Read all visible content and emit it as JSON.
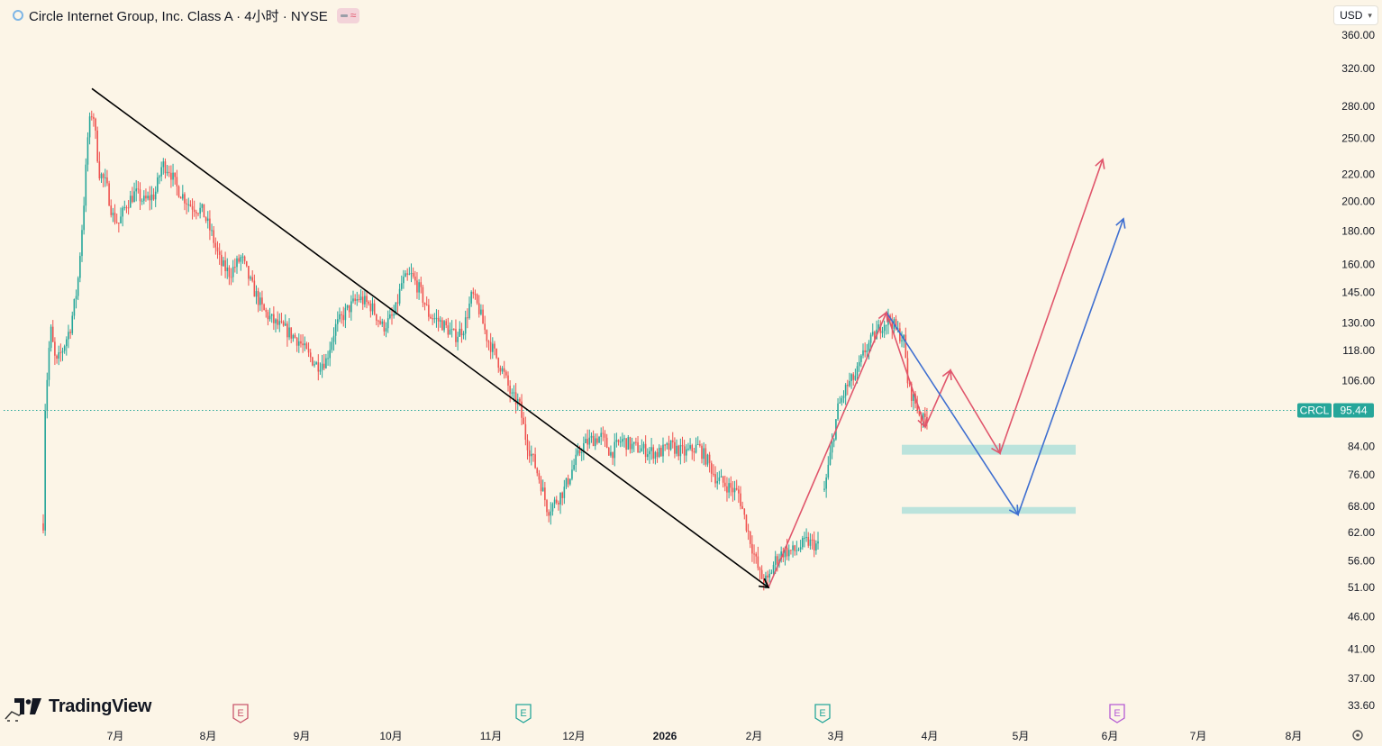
{
  "header": {
    "title": "Circle Internet Group, Inc. Class A · 4小时 · NYSE",
    "badge_icon": "wave-icon"
  },
  "currency": {
    "label": "USD"
  },
  "logo": {
    "text": "TradingView",
    "icon": "tradingview-logo-icon"
  },
  "colors": {
    "background": "#fcf5e7",
    "up": "#26a69a",
    "down": "#ef5350",
    "trendline": "#000000",
    "red_path": "#e0566c",
    "blue_path": "#3f6fd0",
    "zone": "#a6dcd8",
    "price_label": "#26a69a",
    "earnings": "#c9576c"
  },
  "chart_data": {
    "type": "candlestick",
    "symbol": "CRCL",
    "exchange": "NYSE",
    "interval": "4小时",
    "y_scale": "log",
    "ylim": [
      31,
      364
    ],
    "current_price": {
      "label": "CRCL",
      "value": 95.44
    },
    "y_ticks": [
      {
        "label": "360.00",
        "value": 360
      },
      {
        "label": "320.00",
        "value": 320
      },
      {
        "label": "280.00",
        "value": 280
      },
      {
        "label": "250.00",
        "value": 250
      },
      {
        "label": "220.00",
        "value": 220
      },
      {
        "label": "200.00",
        "value": 200
      },
      {
        "label": "180.00",
        "value": 180
      },
      {
        "label": "160.00",
        "value": 160
      },
      {
        "label": "145.00",
        "value": 145
      },
      {
        "label": "130.00",
        "value": 130
      },
      {
        "label": "118.00",
        "value": 118
      },
      {
        "label": "106.00",
        "value": 106
      },
      {
        "label": "84.00",
        "value": 84
      },
      {
        "label": "76.00",
        "value": 76
      },
      {
        "label": "68.00",
        "value": 68
      },
      {
        "label": "62.00",
        "value": 62
      },
      {
        "label": "56.00",
        "value": 56
      },
      {
        "label": "51.00",
        "value": 51
      },
      {
        "label": "46.00",
        "value": 46
      },
      {
        "label": "41.00",
        "value": 41
      },
      {
        "label": "37.00",
        "value": 37
      },
      {
        "label": "33.60",
        "value": 33.6
      }
    ],
    "x_ticks": [
      {
        "label": "7月",
        "x": 128
      },
      {
        "label": "8月",
        "x": 231
      },
      {
        "label": "9月",
        "x": 335
      },
      {
        "label": "10月",
        "x": 434
      },
      {
        "label": "11月",
        "x": 545
      },
      {
        "label": "12月",
        "x": 637
      },
      {
        "label": "2026",
        "x": 738,
        "bold": true
      },
      {
        "label": "2月",
        "x": 837
      },
      {
        "label": "3月",
        "x": 928
      },
      {
        "label": "4月",
        "x": 1032
      },
      {
        "label": "5月",
        "x": 1133
      },
      {
        "label": "6月",
        "x": 1232
      },
      {
        "label": "7月",
        "x": 1330
      },
      {
        "label": "8月",
        "x": 1436
      }
    ],
    "earnings_markers": [
      {
        "label": "E",
        "x": 267,
        "color": "#c9576c"
      },
      {
        "label": "E",
        "x": 581,
        "color": "#26a69a"
      },
      {
        "label": "E",
        "x": 913,
        "color": "#26a69a"
      },
      {
        "label": "E",
        "x": 1240,
        "color": "#b55bd4"
      }
    ],
    "price_path": [
      {
        "x": 48,
        "p": 64
      },
      {
        "x": 50,
        "p": 96
      },
      {
        "x": 56,
        "p": 128
      },
      {
        "x": 62,
        "p": 112
      },
      {
        "x": 70,
        "p": 119
      },
      {
        "x": 78,
        "p": 128
      },
      {
        "x": 86,
        "p": 148
      },
      {
        "x": 93,
        "p": 198
      },
      {
        "x": 98,
        "p": 258
      },
      {
        "x": 103,
        "p": 278
      },
      {
        "x": 110,
        "p": 222
      },
      {
        "x": 118,
        "p": 212
      },
      {
        "x": 125,
        "p": 190
      },
      {
        "x": 132,
        "p": 185
      },
      {
        "x": 140,
        "p": 198
      },
      {
        "x": 150,
        "p": 206
      },
      {
        "x": 160,
        "p": 200
      },
      {
        "x": 172,
        "p": 205
      },
      {
        "x": 180,
        "p": 228
      },
      {
        "x": 188,
        "p": 224
      },
      {
        "x": 196,
        "p": 210
      },
      {
        "x": 210,
        "p": 198
      },
      {
        "x": 225,
        "p": 193
      },
      {
        "x": 235,
        "p": 178
      },
      {
        "x": 245,
        "p": 160
      },
      {
        "x": 255,
        "p": 155
      },
      {
        "x": 268,
        "p": 164
      },
      {
        "x": 278,
        "p": 150
      },
      {
        "x": 292,
        "p": 136
      },
      {
        "x": 305,
        "p": 130
      },
      {
        "x": 320,
        "p": 126
      },
      {
        "x": 332,
        "p": 122
      },
      {
        "x": 342,
        "p": 116
      },
      {
        "x": 352,
        "p": 112
      },
      {
        "x": 362,
        "p": 114
      },
      {
        "x": 372,
        "p": 128
      },
      {
        "x": 385,
        "p": 136
      },
      {
        "x": 398,
        "p": 142
      },
      {
        "x": 412,
        "p": 138
      },
      {
        "x": 425,
        "p": 128
      },
      {
        "x": 438,
        "p": 134
      },
      {
        "x": 446,
        "p": 150
      },
      {
        "x": 456,
        "p": 154
      },
      {
        "x": 466,
        "p": 146
      },
      {
        "x": 476,
        "p": 134
      },
      {
        "x": 490,
        "p": 130
      },
      {
        "x": 505,
        "p": 124
      },
      {
        "x": 515,
        "p": 128
      },
      {
        "x": 524,
        "p": 144
      },
      {
        "x": 532,
        "p": 136
      },
      {
        "x": 540,
        "p": 124
      },
      {
        "x": 550,
        "p": 116
      },
      {
        "x": 560,
        "p": 108
      },
      {
        "x": 568,
        "p": 100
      },
      {
        "x": 576,
        "p": 98
      },
      {
        "x": 584,
        "p": 86
      },
      {
        "x": 592,
        "p": 80
      },
      {
        "x": 600,
        "p": 74
      },
      {
        "x": 608,
        "p": 67
      },
      {
        "x": 616,
        "p": 69
      },
      {
        "x": 626,
        "p": 72
      },
      {
        "x": 636,
        "p": 78
      },
      {
        "x": 646,
        "p": 84
      },
      {
        "x": 656,
        "p": 86
      },
      {
        "x": 668,
        "p": 87
      },
      {
        "x": 678,
        "p": 82
      },
      {
        "x": 690,
        "p": 86
      },
      {
        "x": 702,
        "p": 84
      },
      {
        "x": 715,
        "p": 83
      },
      {
        "x": 730,
        "p": 82
      },
      {
        "x": 745,
        "p": 84
      },
      {
        "x": 760,
        "p": 82
      },
      {
        "x": 775,
        "p": 84
      },
      {
        "x": 785,
        "p": 80
      },
      {
        "x": 795,
        "p": 75
      },
      {
        "x": 808,
        "p": 73
      },
      {
        "x": 820,
        "p": 71
      },
      {
        "x": 828,
        "p": 64
      },
      {
        "x": 836,
        "p": 58
      },
      {
        "x": 844,
        "p": 53
      },
      {
        "x": 852,
        "p": 52
      },
      {
        "x": 860,
        "p": 56
      },
      {
        "x": 870,
        "p": 58
      },
      {
        "x": 882,
        "p": 58
      },
      {
        "x": 895,
        "p": 60
      },
      {
        "x": 910,
        "p": 59
      }
    ],
    "reaction_path": [
      {
        "x": 915,
        "p": 72
      },
      {
        "x": 922,
        "p": 82
      },
      {
        "x": 930,
        "p": 96
      },
      {
        "x": 940,
        "p": 104
      },
      {
        "x": 950,
        "p": 108
      },
      {
        "x": 960,
        "p": 118
      },
      {
        "x": 970,
        "p": 124
      },
      {
        "x": 980,
        "p": 130
      },
      {
        "x": 988,
        "p": 132
      },
      {
        "x": 996,
        "p": 126
      },
      {
        "x": 1003,
        "p": 123
      },
      {
        "x": 1008,
        "p": 104
      },
      {
        "x": 1016,
        "p": 98
      },
      {
        "x": 1024,
        "p": 92
      },
      {
        "x": 1030,
        "p": 94
      }
    ],
    "trendline": [
      {
        "x": 102,
        "p": 298
      },
      {
        "x": 853,
        "p": 51
      }
    ],
    "red_projection": [
      {
        "x": 853,
        "p": 51
      },
      {
        "x": 984,
        "p": 135
      },
      {
        "x": 1027,
        "p": 90
      },
      {
        "x": 1055,
        "p": 110
      },
      {
        "x": 1110,
        "p": 82
      },
      {
        "x": 1224,
        "p": 232
      }
    ],
    "blue_projection": [
      {
        "x": 984,
        "p": 135
      },
      {
        "x": 1130,
        "p": 66
      },
      {
        "x": 1247,
        "p": 188
      }
    ],
    "zones": [
      {
        "x1": 1001,
        "x2": 1194,
        "p1": 84.5,
        "p2": 81.6
      },
      {
        "x1": 1001,
        "x2": 1194,
        "p1": 67.8,
        "p2": 66.2
      }
    ]
  }
}
